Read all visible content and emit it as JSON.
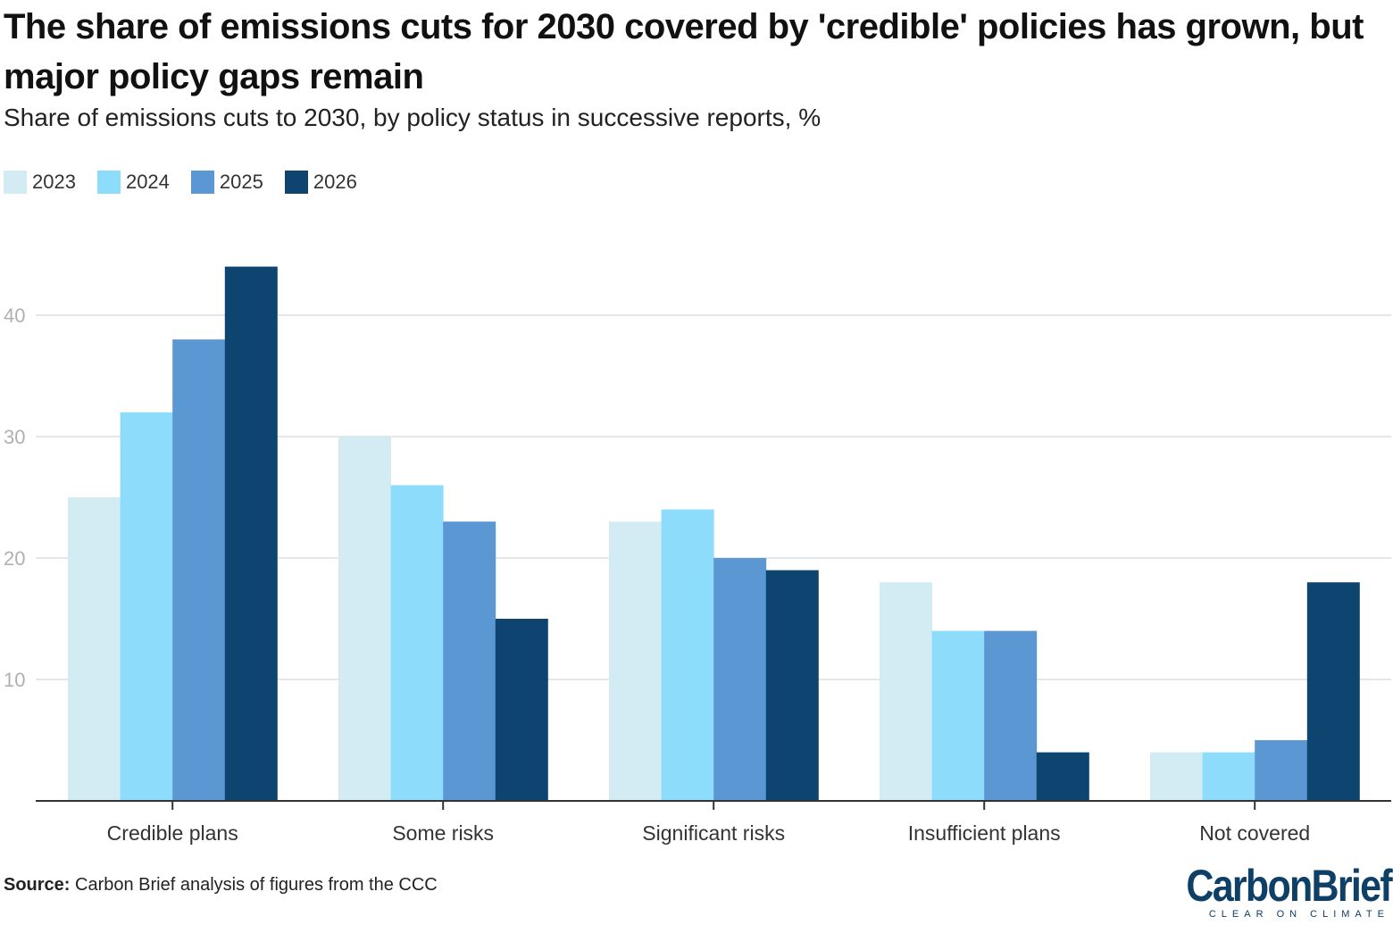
{
  "title": "The share of emissions cuts for 2030 covered by 'credible' policies has grown, but major policy gaps remain",
  "subtitle": "Share of emissions cuts to 2030, by policy status in successive reports, %",
  "source": {
    "label": "Source:",
    "text": "Carbon Brief analysis of figures from the CCC"
  },
  "logo": {
    "word": "CarbonBrief",
    "tagline": "CLEAR ON CLIMATE"
  },
  "colors": {
    "2023": "#d3ecf3",
    "2024": "#8ddcfb",
    "2025": "#5b97d2",
    "2026": "#0e4470",
    "grid": "#e6e6e6",
    "axis": "#333333",
    "tick": "#b0b0b0",
    "brand": "#0e3f66"
  },
  "chart_data": {
    "type": "bar",
    "title": "The share of emissions cuts for 2030 covered by 'credible' policies has grown, but major policy gaps remain",
    "subtitle": "Share of emissions cuts to 2030, by policy status in successive reports, %",
    "xlabel": "",
    "ylabel": "",
    "categories": [
      "Credible plans",
      "Some risks",
      "Significant risks",
      "Insufficient plans",
      "Not covered"
    ],
    "series": [
      {
        "name": "2023",
        "values": [
          25,
          30,
          23,
          18,
          4
        ]
      },
      {
        "name": "2024",
        "values": [
          32,
          26,
          24,
          14,
          4
        ]
      },
      {
        "name": "2025",
        "values": [
          38,
          23,
          20,
          14,
          5
        ]
      },
      {
        "name": "2026",
        "values": [
          44,
          15,
          19,
          4,
          18
        ]
      }
    ],
    "ylim": [
      0,
      48
    ],
    "yticks": [
      10,
      20,
      30,
      40
    ],
    "grid": true,
    "legend": "top-left"
  }
}
